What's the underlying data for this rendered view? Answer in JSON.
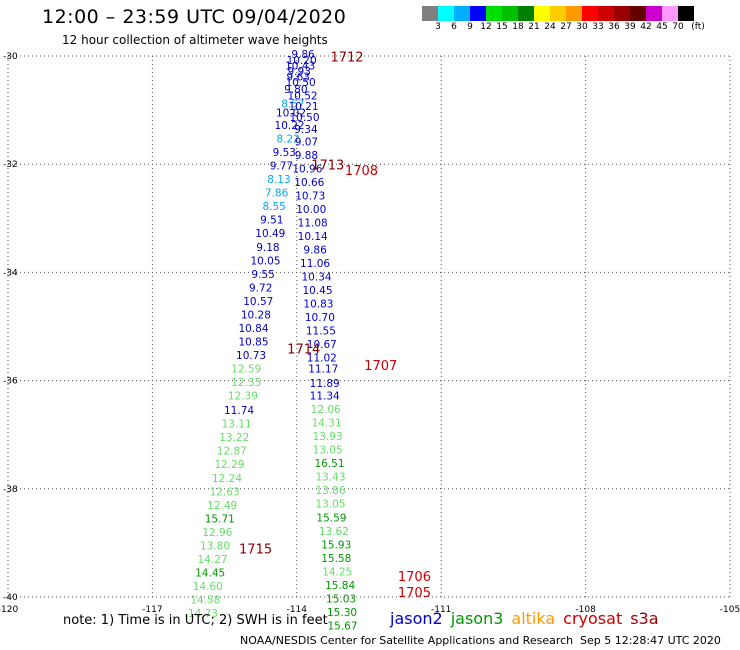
{
  "header": {
    "title": "12:00 – 23:59 UTC 09/04/2020",
    "subtitle": "12 hour collection of altimeter wave heights"
  },
  "colorbar": {
    "swatches": [
      "#808080",
      "#00ffff",
      "#00b0ff",
      "#0000ff",
      "#00e000",
      "#00c000",
      "#008000",
      "#ffff00",
      "#ffcc00",
      "#ff9900",
      "#ff0000",
      "#cc0000",
      "#990000",
      "#660000",
      "#cc00cc",
      "#ff99ff",
      "#000000"
    ],
    "labels": [
      "3",
      "6",
      "9",
      "12",
      "15",
      "18",
      "21",
      "24",
      "27",
      "30",
      "33",
      "36",
      "39",
      "42",
      "45",
      "70",
      "(ft)"
    ]
  },
  "chart_data": {
    "type": "scatter",
    "x_axis": {
      "range": [
        -120,
        -105
      ],
      "ticks": [
        "-120",
        "-117",
        "-114",
        "-111",
        "-108",
        "-105"
      ]
    },
    "y_axis": {
      "range": [
        -40,
        -30
      ],
      "ticks": [
        "-30",
        "-32",
        "-34",
        "-36",
        "-38",
        "-40"
      ]
    },
    "grid": true,
    "passes": [
      {
        "id": "1712",
        "satellite": "jason2",
        "label_pos": [
          -113.3,
          -30.1
        ]
      },
      {
        "id": "1708",
        "satellite": "jason2",
        "label_pos": [
          -113.0,
          -32.2
        ]
      },
      {
        "id": "1713",
        "satellite": "jason2",
        "label_pos": [
          -113.7,
          -32.1
        ]
      },
      {
        "id": "1714",
        "satellite": "jason2",
        "label_pos": [
          -114.2,
          -35.5
        ]
      },
      {
        "id": "1707",
        "satellite": "jason2",
        "label_pos": [
          -112.6,
          -35.8
        ]
      },
      {
        "id": "1715",
        "satellite": "jason2",
        "label_pos": [
          -115.2,
          -39.2
        ]
      },
      {
        "id": "1706",
        "satellite": "jason2",
        "label_pos": [
          -111.9,
          -39.7
        ]
      },
      {
        "id": "1705",
        "satellite": "jason2",
        "label_pos": [
          -111.9,
          -40.0
        ]
      }
    ],
    "observations": [
      {
        "lon": -113.87,
        "lat": -30.04,
        "swh": "9.86",
        "color": "#0000cc"
      },
      {
        "lon": -113.9,
        "lat": -30.15,
        "swh": "10.20",
        "color": "#0000cc"
      },
      {
        "lon": -113.93,
        "lat": -30.25,
        "swh": "10.43",
        "color": "#0000cc"
      },
      {
        "lon": -113.95,
        "lat": -30.35,
        "swh": "9.93",
        "color": "#0000cc"
      },
      {
        "lon": -113.97,
        "lat": -30.45,
        "swh": "9.63",
        "color": "#0000cc"
      },
      {
        "lon": -113.92,
        "lat": -30.55,
        "swh": "10.50",
        "color": "#0000cc"
      },
      {
        "lon": -114.02,
        "lat": -30.68,
        "swh": "9.80",
        "color": "#0000cc"
      },
      {
        "lon": -113.88,
        "lat": -30.8,
        "swh": "10.52",
        "color": "#0000cc"
      },
      {
        "lon": -114.08,
        "lat": -30.95,
        "swh": "8.57",
        "color": "#00aaee"
      },
      {
        "lon": -113.86,
        "lat": -31.0,
        "swh": "10.21",
        "color": "#0000cc"
      },
      {
        "lon": -114.12,
        "lat": -31.12,
        "swh": "10.02",
        "color": "#0000cc"
      },
      {
        "lon": -113.84,
        "lat": -31.2,
        "swh": "10.50",
        "color": "#0000cc"
      },
      {
        "lon": -114.15,
        "lat": -31.35,
        "swh": "10.22",
        "color": "#0000cc"
      },
      {
        "lon": -113.81,
        "lat": -31.42,
        "swh": "9.34",
        "color": "#0000cc"
      },
      {
        "lon": -114.18,
        "lat": -31.6,
        "swh": "8.22",
        "color": "#00aaee"
      },
      {
        "lon": -113.8,
        "lat": -31.65,
        "swh": "9.07",
        "color": "#0000cc"
      },
      {
        "lon": -114.26,
        "lat": -31.85,
        "swh": "9.53",
        "color": "#0000cc"
      },
      {
        "lon": -113.8,
        "lat": -31.9,
        "swh": "9.88",
        "color": "#0000cc"
      },
      {
        "lon": -114.32,
        "lat": -32.1,
        "swh": "9.77",
        "color": "#0000cc"
      },
      {
        "lon": -113.78,
        "lat": -32.15,
        "swh": "10.96",
        "color": "#0000cc"
      },
      {
        "lon": -114.37,
        "lat": -32.35,
        "swh": "8.13",
        "color": "#00aaee"
      },
      {
        "lon": -113.74,
        "lat": -32.4,
        "swh": "10.66",
        "color": "#0000cc"
      },
      {
        "lon": -114.42,
        "lat": -32.6,
        "swh": "7.86",
        "color": "#00aaee"
      },
      {
        "lon": -113.72,
        "lat": -32.65,
        "swh": "10.73",
        "color": "#0000cc"
      },
      {
        "lon": -114.47,
        "lat": -32.85,
        "swh": "8.55",
        "color": "#00aaee"
      },
      {
        "lon": -113.7,
        "lat": -32.9,
        "swh": "10.00",
        "color": "#0000cc"
      },
      {
        "lon": -114.52,
        "lat": -33.1,
        "swh": "9.51",
        "color": "#0000cc"
      },
      {
        "lon": -113.67,
        "lat": -33.15,
        "swh": "11.08",
        "color": "#0000cc"
      },
      {
        "lon": -114.55,
        "lat": -33.35,
        "swh": "10.49",
        "color": "#0000cc"
      },
      {
        "lon": -113.67,
        "lat": -33.4,
        "swh": "10.14",
        "color": "#0000cc"
      },
      {
        "lon": -114.6,
        "lat": -33.6,
        "swh": "9.18",
        "color": "#0000cc"
      },
      {
        "lon": -113.62,
        "lat": -33.65,
        "swh": "9.86",
        "color": "#0000cc"
      },
      {
        "lon": -114.65,
        "lat": -33.85,
        "swh": "10.05",
        "color": "#0000cc"
      },
      {
        "lon": -113.62,
        "lat": -33.9,
        "swh": "11.06",
        "color": "#0000cc"
      },
      {
        "lon": -114.7,
        "lat": -34.1,
        "swh": "9.55",
        "color": "#0000cc"
      },
      {
        "lon": -113.59,
        "lat": -34.15,
        "swh": "10.34",
        "color": "#0000cc"
      },
      {
        "lon": -114.75,
        "lat": -34.35,
        "swh": "9.72",
        "color": "#0000cc"
      },
      {
        "lon": -113.57,
        "lat": -34.4,
        "swh": "10.45",
        "color": "#0000cc"
      },
      {
        "lon": -114.8,
        "lat": -34.6,
        "swh": "10.57",
        "color": "#0000cc"
      },
      {
        "lon": -113.55,
        "lat": -34.65,
        "swh": "10.83",
        "color": "#0000cc"
      },
      {
        "lon": -114.85,
        "lat": -34.85,
        "swh": "10.28",
        "color": "#0000cc"
      },
      {
        "lon": -113.52,
        "lat": -34.9,
        "swh": "10.70",
        "color": "#0000cc"
      },
      {
        "lon": -114.9,
        "lat": -35.1,
        "swh": "10.84",
        "color": "#0000cc"
      },
      {
        "lon": -113.5,
        "lat": -35.15,
        "swh": "11.55",
        "color": "#0000cc"
      },
      {
        "lon": -114.9,
        "lat": -35.35,
        "swh": "10.85",
        "color": "#0000cc"
      },
      {
        "lon": -113.48,
        "lat": -35.4,
        "swh": "10.67",
        "color": "#0000cc"
      },
      {
        "lon": -114.95,
        "lat": -35.6,
        "swh": "10.73",
        "color": "#0000cc"
      },
      {
        "lon": -113.48,
        "lat": -35.65,
        "swh": "11.02",
        "color": "#0000cc"
      },
      {
        "lon": -115.05,
        "lat": -35.85,
        "swh": "12.59",
        "color": "#66dd66"
      },
      {
        "lon": -113.45,
        "lat": -35.85,
        "swh": "11.17",
        "color": "#0000cc"
      },
      {
        "lon": -115.05,
        "lat": -36.1,
        "swh": "12.35",
        "color": "#66dd66"
      },
      {
        "lon": -113.42,
        "lat": -36.12,
        "swh": "11.89",
        "color": "#0000cc"
      },
      {
        "lon": -115.12,
        "lat": -36.35,
        "swh": "12.39",
        "color": "#66dd66"
      },
      {
        "lon": -113.42,
        "lat": -36.35,
        "swh": "11.34",
        "color": "#0000cc"
      },
      {
        "lon": -115.2,
        "lat": -36.62,
        "swh": "11.74",
        "color": "#0000cc"
      },
      {
        "lon": -113.4,
        "lat": -36.6,
        "swh": "12.06",
        "color": "#66dd66"
      },
      {
        "lon": -115.25,
        "lat": -36.87,
        "swh": "13.11",
        "color": "#66dd66"
      },
      {
        "lon": -113.38,
        "lat": -36.85,
        "swh": "14.31",
        "color": "#66dd66"
      },
      {
        "lon": -115.3,
        "lat": -37.12,
        "swh": "13.22",
        "color": "#66dd66"
      },
      {
        "lon": -113.36,
        "lat": -37.1,
        "swh": "13.93",
        "color": "#66dd66"
      },
      {
        "lon": -115.35,
        "lat": -37.37,
        "swh": "12.87",
        "color": "#66dd66"
      },
      {
        "lon": -113.36,
        "lat": -37.35,
        "swh": "13.05",
        "color": "#66dd66"
      },
      {
        "lon": -115.4,
        "lat": -37.62,
        "swh": "12.29",
        "color": "#66dd66"
      },
      {
        "lon": -113.32,
        "lat": -37.6,
        "swh": "16.51",
        "color": "#009900"
      },
      {
        "lon": -115.45,
        "lat": -37.87,
        "swh": "12.24",
        "color": "#66dd66"
      },
      {
        "lon": -113.3,
        "lat": -37.85,
        "swh": "13.43",
        "color": "#66dd66"
      },
      {
        "lon": -115.5,
        "lat": -38.12,
        "swh": "12.63",
        "color": "#66dd66"
      },
      {
        "lon": -113.3,
        "lat": -38.1,
        "swh": "13.86",
        "color": "#66dd66"
      },
      {
        "lon": -115.55,
        "lat": -38.37,
        "swh": "12.49",
        "color": "#66dd66"
      },
      {
        "lon": -113.3,
        "lat": -38.35,
        "swh": "13.05",
        "color": "#66dd66"
      },
      {
        "lon": -115.6,
        "lat": -38.62,
        "swh": "15.71",
        "color": "#009900"
      },
      {
        "lon": -113.28,
        "lat": -38.6,
        "swh": "15.59",
        "color": "#009900"
      },
      {
        "lon": -115.65,
        "lat": -38.87,
        "swh": "12.96",
        "color": "#66dd66"
      },
      {
        "lon": -113.23,
        "lat": -38.85,
        "swh": "13.62",
        "color": "#66dd66"
      },
      {
        "lon": -115.7,
        "lat": -39.12,
        "swh": "13.80",
        "color": "#66dd66"
      },
      {
        "lon": -113.18,
        "lat": -39.1,
        "swh": "15.93",
        "color": "#009900"
      },
      {
        "lon": -115.75,
        "lat": -39.37,
        "swh": "14.27",
        "color": "#66dd66"
      },
      {
        "lon": -113.18,
        "lat": -39.35,
        "swh": "15.58",
        "color": "#009900"
      },
      {
        "lon": -115.8,
        "lat": -39.62,
        "swh": "14.45",
        "color": "#009900"
      },
      {
        "lon": -113.16,
        "lat": -39.6,
        "swh": "14.25",
        "color": "#66dd66"
      },
      {
        "lon": -115.85,
        "lat": -39.87,
        "swh": "14.60",
        "color": "#66dd66"
      },
      {
        "lon": -113.1,
        "lat": -39.85,
        "swh": "15.84",
        "color": "#009900"
      },
      {
        "lon": -115.9,
        "lat": -40.12,
        "swh": "14.58",
        "color": "#66dd66"
      },
      {
        "lon": -113.08,
        "lat": -40.1,
        "swh": "15.03",
        "color": "#009900"
      },
      {
        "lon": -115.95,
        "lat": -40.37,
        "swh": "14.73",
        "color": "#66dd66"
      },
      {
        "lon": -113.06,
        "lat": -40.35,
        "swh": "15.30",
        "color": "#009900"
      },
      {
        "lon": -113.05,
        "lat": -40.6,
        "swh": "15.67",
        "color": "#009900"
      }
    ]
  },
  "footer": {
    "note": "note: 1) Time is in UTC; 2) SWH is in feet",
    "legend": [
      {
        "name": "jason2",
        "color": "#0000cc"
      },
      {
        "name": "jason3",
        "color": "#009900"
      },
      {
        "name": "altika",
        "color": "#ff9900"
      },
      {
        "name": "cryosat",
        "color": "#cc0000"
      },
      {
        "name": "s3a",
        "color": "#990000"
      }
    ],
    "credit": "NOAA/NESDIS Center for Satellite Applications and Research",
    "timestamp": "Sep  5 12:28:47 UTC 2020"
  }
}
